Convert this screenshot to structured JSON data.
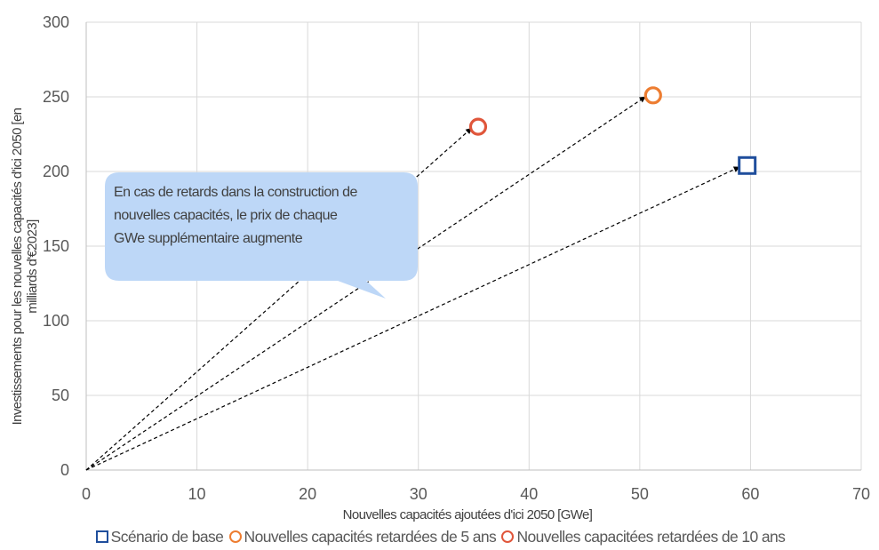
{
  "chart_data": {
    "type": "scatter",
    "x_axis": {
      "label": "Nouvelles capacités ajoutées d'ici  2050 [GWe]",
      "range": [
        0,
        70
      ],
      "ticks": [
        0,
        10,
        20,
        30,
        40,
        50,
        60,
        70
      ]
    },
    "y_axis": {
      "label_line1": "Investissements pour les nouvelles capacités d'ici 2050 [en",
      "label_line2": "milliards d'€2023]",
      "range": [
        0,
        300
      ],
      "ticks": [
        0,
        50,
        100,
        150,
        200,
        250,
        300
      ]
    },
    "grid": true,
    "legend_position": "bottom",
    "series": [
      {
        "name": "Scénario de base",
        "marker": "square",
        "color": "#1f4e9c",
        "points": [
          {
            "x": 59.7,
            "y": 204
          }
        ]
      },
      {
        "name": "Nouvelles capacités retardées de 5 ans",
        "marker": "circle",
        "color": "#ed7d31",
        "points": [
          {
            "x": 51.2,
            "y": 251
          }
        ]
      },
      {
        "name": "Nouvelles capacitées retardées de 10 ans",
        "marker": "circle",
        "color": "#e0563b",
        "points": [
          {
            "x": 35.4,
            "y": 230
          }
        ]
      }
    ],
    "arrows": [
      {
        "from": [
          0,
          0
        ],
        "to": [
          59.0,
          203
        ]
      },
      {
        "from": [
          0,
          0
        ],
        "to": [
          50.5,
          250
        ]
      },
      {
        "from": [
          0,
          0
        ],
        "to": [
          34.8,
          229
        ]
      }
    ],
    "callout": {
      "lines": [
        "En cas de retards dans la construction de",
        "nouvelles capacités, le prix de chaque",
        "GWe supplémentaire augmente"
      ],
      "color": "#bdd7f7"
    }
  }
}
